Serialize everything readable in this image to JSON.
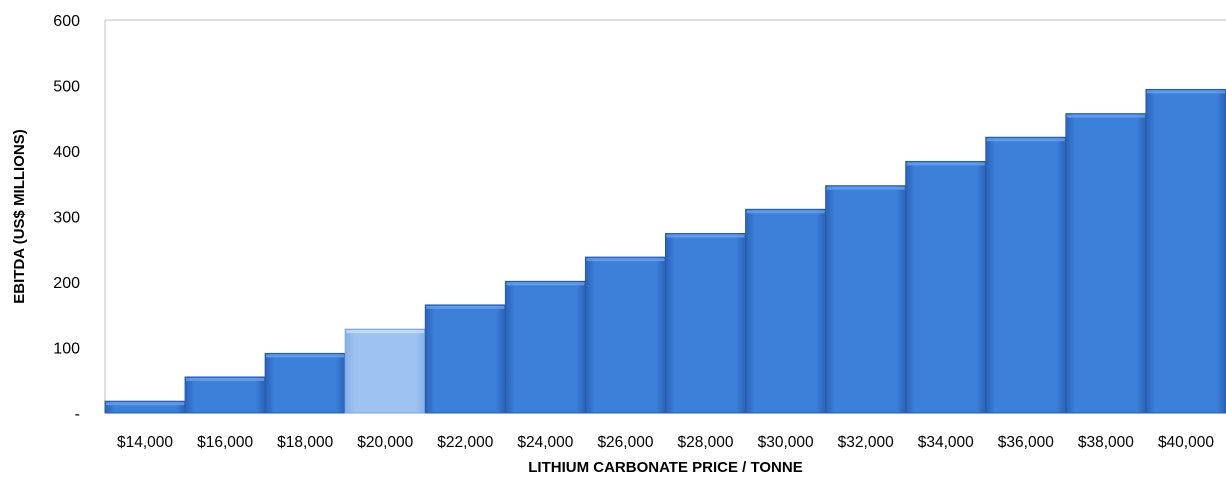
{
  "chart_data": {
    "type": "bar",
    "categories": [
      "$14,000",
      "$16,000",
      "$18,000",
      "$20,000",
      "$22,000",
      "$24,000",
      "$26,000",
      "$28,000",
      "$30,000",
      "$32,000",
      "$34,000",
      "$36,000",
      "$38,000",
      "$40,000"
    ],
    "values": [
      18,
      55,
      91,
      128,
      165,
      201,
      238,
      274,
      311,
      347,
      384,
      421,
      457,
      494
    ],
    "highlight_index": 3,
    "xlabel": "LITHIUM CARBONATE PRICE / TONNE",
    "ylabel": "EBITDA (US$ MILLIONS)",
    "ylim": [
      0,
      600
    ],
    "yticks": [
      0,
      100,
      200,
      300,
      400,
      500,
      600
    ],
    "ytick_labels": [
      "-",
      "100",
      "200",
      "300",
      "400",
      "500",
      "600"
    ],
    "grid": false,
    "legend": "none",
    "colors": {
      "bar": "#3b7dd8",
      "bar_highlight": "#99c0f0",
      "axis": "#bfbfbf"
    }
  }
}
